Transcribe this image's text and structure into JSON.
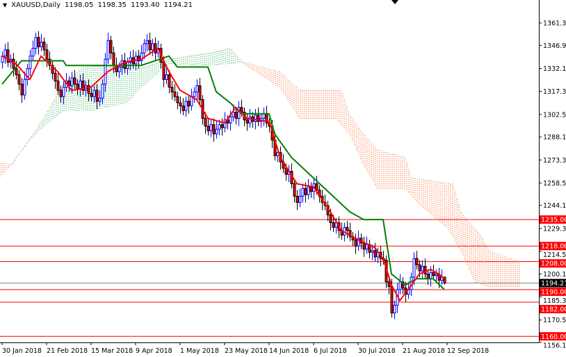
{
  "header": {
    "symbol": "XAUUSD,Daily",
    "open": "1198.05",
    "high": "1198.35",
    "low": "1193.40",
    "close": "1194.21",
    "menu_icon": "triangle-down-icon"
  },
  "colors": {
    "bull_outline": "#0000ff",
    "bull_body": "#ffffff",
    "bear_outline": "#000000",
    "bear_body": "#ff0000",
    "tenkan": "#ff0000",
    "kijun": "#008000",
    "cloud_bull": "#009933",
    "cloud_bear": "#ff4500",
    "level_line": "#ff0000",
    "price_line": "#808080"
  },
  "chart_data": {
    "type": "candlestick",
    "indicator": "Ichimoku",
    "ylim": [
      1156.1,
      1361.3
    ],
    "y_ticks": [
      "1361.30",
      "1346.90",
      "1332.10",
      "1317.30",
      "1302.50",
      "1288.10",
      "1273.30",
      "1258.50",
      "1244.10",
      "1229.30",
      "1214.50",
      "1200.10",
      "1185.30",
      "1170.50",
      "1156.10"
    ],
    "x_ticks": [
      {
        "bar": 0,
        "label": "30 Jan 2018"
      },
      {
        "bar": 16,
        "label": "21 Feb 2018"
      },
      {
        "bar": 32,
        "label": "15 Mar 2018"
      },
      {
        "bar": 48,
        "label": "9 Apr 2018"
      },
      {
        "bar": 64,
        "label": "1 May 2018"
      },
      {
        "bar": 80,
        "label": "23 May 2018"
      },
      {
        "bar": 96,
        "label": "14 Jun 2018"
      },
      {
        "bar": 112,
        "label": "6 Jul 2018"
      },
      {
        "bar": 128,
        "label": "30 Jul 2018"
      },
      {
        "bar": 144,
        "label": "21 Aug 2018"
      },
      {
        "bar": 160,
        "label": "12 Sep 2018"
      }
    ],
    "first_open": 1336,
    "closes": [
      1340,
      1344,
      1336,
      1338,
      1332,
      1328,
      1322,
      1315,
      1325,
      1332,
      1340,
      1345,
      1352,
      1346,
      1349,
      1344,
      1338,
      1334,
      1329,
      1324,
      1318,
      1314,
      1320,
      1324,
      1321,
      1326,
      1322,
      1319,
      1324,
      1318,
      1321,
      1316,
      1314,
      1318,
      1311,
      1313,
      1322,
      1338,
      1350,
      1342,
      1334,
      1330,
      1333,
      1337,
      1332,
      1336,
      1339,
      1335,
      1340,
      1337,
      1342,
      1348,
      1350,
      1344,
      1348,
      1342,
      1345,
      1336,
      1325,
      1328,
      1320,
      1317,
      1314,
      1310,
      1308,
      1305,
      1311,
      1308,
      1314,
      1317,
      1321,
      1312,
      1300,
      1295,
      1292,
      1296,
      1290,
      1293,
      1296,
      1294,
      1299,
      1297,
      1301,
      1304,
      1300,
      1307,
      1304,
      1299,
      1297,
      1301,
      1298,
      1302,
      1298,
      1300,
      1303,
      1297,
      1295,
      1286,
      1276,
      1278,
      1272,
      1268,
      1264,
      1266,
      1258,
      1250,
      1246,
      1250,
      1255,
      1251,
      1256,
      1253,
      1258,
      1254,
      1250,
      1246,
      1244,
      1238,
      1233,
      1230,
      1233,
      1228,
      1225,
      1230,
      1228,
      1224,
      1222,
      1218,
      1223,
      1220,
      1216,
      1219,
      1214,
      1215,
      1211,
      1214,
      1210,
      1209,
      1195,
      1192,
      1175,
      1180,
      1190,
      1195,
      1191,
      1187,
      1190,
      1198,
      1210,
      1206,
      1202,
      1205,
      1200,
      1197,
      1201,
      1199,
      1200,
      1196,
      1198.05,
      1194.21
    ],
    "last_candle": {
      "open": 1198.05,
      "high": 1198.35,
      "low": 1193.4,
      "close": 1194.21
    },
    "tenkan": [
      [
        0,
        1340
      ],
      [
        5,
        1335
      ],
      [
        10,
        1325
      ],
      [
        14,
        1340
      ],
      [
        20,
        1330
      ],
      [
        25,
        1318
      ],
      [
        32,
        1320
      ],
      [
        38,
        1330
      ],
      [
        44,
        1336
      ],
      [
        50,
        1338
      ],
      [
        56,
        1345
      ],
      [
        60,
        1330
      ],
      [
        64,
        1318
      ],
      [
        70,
        1312
      ],
      [
        74,
        1300
      ],
      [
        80,
        1297
      ],
      [
        84,
        1307
      ],
      [
        88,
        1300
      ],
      [
        96,
        1298
      ],
      [
        100,
        1275
      ],
      [
        106,
        1258
      ],
      [
        112,
        1256
      ],
      [
        118,
        1240
      ],
      [
        122,
        1228
      ],
      [
        128,
        1222
      ],
      [
        134,
        1217
      ],
      [
        137,
        1210
      ],
      [
        140,
        1193
      ],
      [
        143,
        1183
      ],
      [
        146,
        1190
      ],
      [
        150,
        1200
      ],
      [
        154,
        1203
      ],
      [
        157,
        1200
      ],
      [
        159,
        1197
      ]
    ],
    "kijun": [
      [
        0,
        1322
      ],
      [
        7,
        1337
      ],
      [
        22,
        1337
      ],
      [
        23,
        1334
      ],
      [
        50,
        1334
      ],
      [
        60,
        1340
      ],
      [
        63,
        1333
      ],
      [
        74,
        1333
      ],
      [
        77,
        1317
      ],
      [
        82,
        1310
      ],
      [
        86,
        1303
      ],
      [
        96,
        1303
      ],
      [
        98,
        1290
      ],
      [
        104,
        1275
      ],
      [
        113,
        1260
      ],
      [
        119,
        1250
      ],
      [
        125,
        1240
      ],
      [
        130,
        1235
      ],
      [
        137,
        1235
      ],
      [
        140,
        1200
      ],
      [
        145,
        1193
      ],
      [
        149,
        1197
      ],
      [
        155,
        1197
      ],
      [
        159,
        1190
      ]
    ],
    "senkou_a": [
      [
        -1,
        1262
      ],
      [
        4,
        1272
      ],
      [
        12,
        1292
      ],
      [
        15,
        1300
      ],
      [
        22,
        1322
      ],
      [
        30,
        1334
      ],
      [
        50,
        1332
      ],
      [
        60,
        1338
      ],
      [
        75,
        1342
      ],
      [
        82,
        1345
      ],
      [
        87,
        1335
      ],
      [
        100,
        1320
      ],
      [
        107,
        1300
      ],
      [
        120,
        1300
      ],
      [
        125,
        1290
      ],
      [
        130,
        1270
      ],
      [
        135,
        1255
      ],
      [
        145,
        1255
      ],
      [
        150,
        1245
      ],
      [
        160,
        1230
      ],
      [
        165,
        1215
      ],
      [
        170,
        1195
      ],
      [
        175,
        1192
      ],
      [
        186,
        1192
      ]
    ],
    "senkou_b": [
      [
        -1,
        1272
      ],
      [
        4,
        1270
      ],
      [
        5,
        1275
      ],
      [
        12,
        1290
      ],
      [
        22,
        1305
      ],
      [
        32,
        1305
      ],
      [
        45,
        1310
      ],
      [
        50,
        1320
      ],
      [
        60,
        1335
      ],
      [
        75,
        1334
      ],
      [
        87,
        1336
      ],
      [
        100,
        1330
      ],
      [
        107,
        1318
      ],
      [
        122,
        1318
      ],
      [
        125,
        1302
      ],
      [
        130,
        1290
      ],
      [
        135,
        1280
      ],
      [
        145,
        1275
      ],
      [
        147,
        1262
      ],
      [
        162,
        1258
      ],
      [
        165,
        1240
      ],
      [
        172,
        1225
      ],
      [
        175,
        1215
      ],
      [
        186,
        1208
      ]
    ],
    "levels": [
      "1235.00",
      "1218.00",
      "1208.00",
      "1190.00",
      "1182.00",
      "1160.00"
    ],
    "current_price": "1194.21"
  }
}
